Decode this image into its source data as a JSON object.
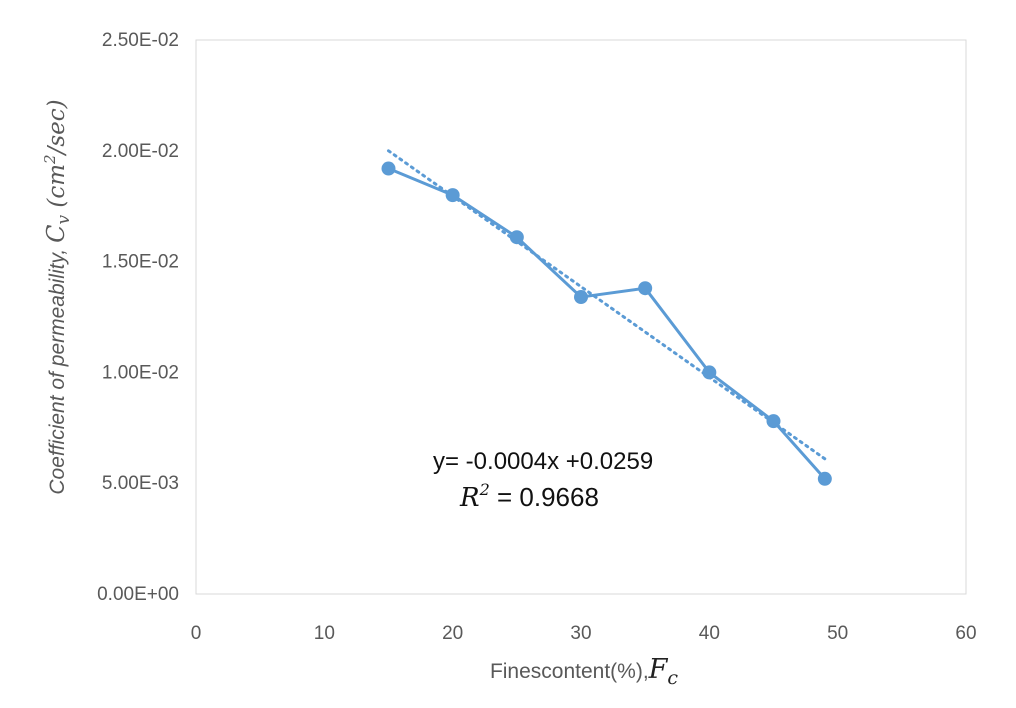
{
  "chart_data": {
    "type": "scatter",
    "title": "",
    "xlabel": "Finescontent(%),",
    "xlabel_symbol": "F",
    "xlabel_symbol_sub": "c",
    "ylabel": "Coefficient of permeability, ",
    "ylabel_symbol": "C",
    "ylabel_symbol_sub": "v",
    "ylabel_unit_open": " (cm",
    "ylabel_unit_sup": "2",
    "ylabel_unit_close": "/sec)",
    "xlim": [
      0,
      60
    ],
    "ylim": [
      0,
      0.025
    ],
    "xticks": [
      0,
      10,
      20,
      30,
      40,
      50,
      60
    ],
    "xtick_labels": [
      "0",
      "10",
      "20",
      "30",
      "40",
      "50",
      "60"
    ],
    "yticks": [
      0,
      0.005,
      0.01,
      0.015,
      0.02,
      0.025
    ],
    "ytick_labels": [
      "0.00E+00",
      "5.00E-03",
      "1.00E-02",
      "1.50E-02",
      "2.00E-02",
      "2.50E-02"
    ],
    "grid": false,
    "series": [
      {
        "color": "#5B9BD5",
        "style": "line-with-markers",
        "x": [
          15,
          20,
          25,
          30,
          35,
          40,
          45,
          49
        ],
        "y": [
          0.0192,
          0.018,
          0.0161,
          0.0134,
          0.0138,
          0.01,
          0.0078,
          0.0052
        ]
      }
    ],
    "trendline": {
      "type": "linear",
      "style": "dotted",
      "color": "#5B9BD5",
      "x_range": [
        15,
        49
      ],
      "y_range": [
        0.02,
        0.0061
      ]
    },
    "annotations": {
      "equation": "y= -0.0004x +0.0259",
      "r2_symbol": "R",
      "r2_sup": "2",
      "r2_value": " = 0.9668"
    }
  }
}
